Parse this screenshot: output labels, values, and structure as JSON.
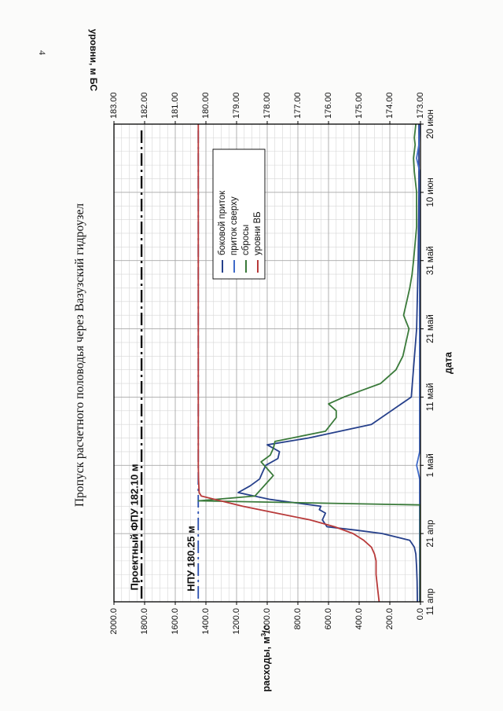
{
  "page": {
    "number": "4",
    "title": "Пропуск расчетного половодья через Вазузский гидроузел"
  },
  "chart_data": {
    "type": "line",
    "xlabel": "дата",
    "ylabel": "расходы, м³/с",
    "ylabel_parts": {
      "main": "расходы, м",
      "sup": "3",
      "sub": "/с"
    },
    "y2label": "уровни, м БС",
    "x_tick_labels": [
      "11 апр",
      "21 апр",
      "1 май",
      "11 май",
      "21 май",
      "31 май",
      "10 июн",
      "20 июн"
    ],
    "x_tick_days": [
      0,
      10,
      20,
      30,
      40,
      50,
      60,
      70
    ],
    "xlim_days": [
      0,
      70
    ],
    "ylim": [
      0,
      2000
    ],
    "y_ticks": [
      0,
      200,
      400,
      600,
      800,
      1000,
      1200,
      1400,
      1600,
      1800,
      2000
    ],
    "y_tick_labels": [
      "0.0",
      "200.0",
      "400.0",
      "600.0",
      "800.0",
      "1000.0",
      "1200.0",
      "1400.0",
      "1600.0",
      "1800.0",
      "2000.0"
    ],
    "y2lim": [
      173,
      183
    ],
    "y2_ticks": [
      173,
      174,
      175,
      176,
      177,
      178,
      179,
      180,
      181,
      182,
      183
    ],
    "y2_tick_labels": [
      "173.00",
      "174.00",
      "175.00",
      "176.00",
      "177.00",
      "178.00",
      "179.00",
      "180.00",
      "181.00",
      "182.00",
      "183.00"
    ],
    "grid": true,
    "legend_position": "top-right",
    "colors": {
      "lateral": "#26408b",
      "upper": "#3f6ac9",
      "discharge": "#3a7a3a",
      "levels": "#b83a3a",
      "frame": "#000000",
      "grid": "#a8a8a8"
    },
    "reference_lines": [
      {
        "label": "Проектный ФПУ 182.10 м",
        "y2": 182.1,
        "style": "dash-dot"
      },
      {
        "label": "НПУ 180.25 м",
        "y2": 180.25,
        "style": "dash-dot",
        "color": "#2a4fb0"
      }
    ],
    "series": [
      {
        "key": "lateral",
        "name": "боковой приток",
        "axis": "left",
        "x": [
          0,
          3,
          5,
          7,
          8,
          9,
          10,
          10.5,
          11,
          12,
          13,
          13.5,
          14,
          15,
          16,
          17,
          18,
          19,
          20,
          21,
          22,
          23,
          24,
          26,
          30,
          40,
          50,
          60,
          65,
          70
        ],
        "y": [
          20,
          22,
          25,
          30,
          40,
          70,
          250,
          420,
          610,
          640,
          620,
          660,
          650,
          980,
          1190,
          1110,
          1050,
          1030,
          1010,
          930,
          920,
          1000,
          730,
          320,
          60,
          25,
          15,
          10,
          10,
          10
        ]
      },
      {
        "key": "upper",
        "name": "приток сверху",
        "axis": "left",
        "x": [
          0,
          18,
          19,
          20,
          21,
          22,
          30,
          50,
          63,
          65,
          67,
          70
        ],
        "y": [
          5,
          5,
          15,
          25,
          15,
          5,
          5,
          5,
          5,
          25,
          10,
          5
        ]
      },
      {
        "key": "discharge",
        "name": "сбросы",
        "axis": "left",
        "x": [
          0,
          10,
          14.2,
          14.8,
          15.5,
          16.5,
          17.5,
          18.5,
          19.5,
          20.5,
          21.5,
          22.5,
          23.5,
          25,
          27,
          28,
          29,
          30,
          31,
          32,
          34,
          36,
          38,
          40,
          42,
          44,
          46,
          48,
          50,
          55,
          60,
          63,
          65,
          67,
          68,
          70
        ],
        "y": [
          2,
          2,
          2,
          1450,
          1080,
          1040,
          1000,
          960,
          1000,
          1040,
          980,
          960,
          950,
          620,
          550,
          550,
          600,
          500,
          380,
          260,
          160,
          115,
          95,
          75,
          110,
          90,
          70,
          55,
          45,
          25,
          25,
          40,
          45,
          35,
          40,
          30
        ]
      },
      {
        "key": "levels",
        "name": "уровни ВБ",
        "axis": "right",
        "x": [
          0,
          2,
          4,
          6,
          7,
          8,
          9,
          10,
          11,
          12,
          13,
          14,
          15,
          15.5,
          16,
          18,
          20,
          30,
          40,
          50,
          60,
          70
        ],
        "y2": [
          174.35,
          174.4,
          174.45,
          174.45,
          174.5,
          174.6,
          174.85,
          175.2,
          175.8,
          176.6,
          177.7,
          178.8,
          179.7,
          180.15,
          180.22,
          180.24,
          180.25,
          180.25,
          180.25,
          180.25,
          180.25,
          180.25
        ]
      }
    ]
  }
}
